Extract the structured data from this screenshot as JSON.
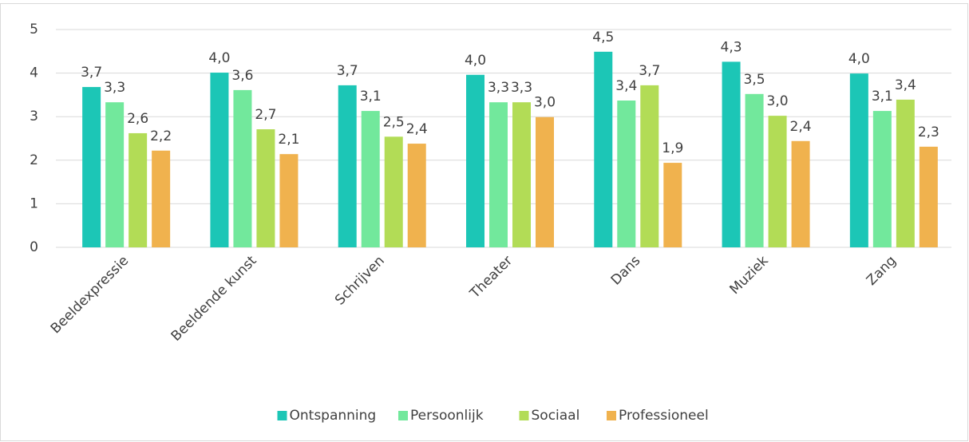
{
  "chart_data": {
    "type": "bar",
    "categories": [
      "Beeldexpressie",
      "Beeldende kunst",
      "Schrijven",
      "Theater",
      "Dans",
      "Muziek",
      "Zang"
    ],
    "series": [
      {
        "name": "Ontspanning",
        "color": "#1cc6b6",
        "values": [
          3.68,
          4.01,
          3.72,
          3.96,
          4.49,
          4.26,
          3.99
        ],
        "value_labels": [
          "3,7",
          "4,0",
          "3,7",
          "4,0",
          "4,5",
          "4,3",
          "4,0"
        ]
      },
      {
        "name": "Persoonlijk",
        "color": "#72e89c",
        "values": [
          3.33,
          3.61,
          3.13,
          3.33,
          3.37,
          3.52,
          3.13
        ],
        "value_labels": [
          "3,3",
          "3,6",
          "3,1",
          "3,3",
          "3,4",
          "3,5",
          "3,1"
        ]
      },
      {
        "name": "Sociaal",
        "color": "#b2dc56",
        "values": [
          2.62,
          2.71,
          2.54,
          3.33,
          3.72,
          3.02,
          3.39
        ],
        "value_labels": [
          "2,6",
          "2,7",
          "2,5",
          "3,3",
          "3,7",
          "3,0",
          "3,4"
        ]
      },
      {
        "name": "Professioneel",
        "color": "#f0b24e",
        "values": [
          2.22,
          2.14,
          2.38,
          2.99,
          1.94,
          2.44,
          2.31
        ],
        "value_labels": [
          "2,2",
          "2,1",
          "2,4",
          "3,0",
          "1,9",
          "2,4",
          "2,3"
        ]
      }
    ],
    "ylim": [
      0,
      5
    ],
    "yticks": [
      0,
      1,
      2,
      3,
      4,
      5
    ],
    "grid": true,
    "legend": "bottom"
  }
}
